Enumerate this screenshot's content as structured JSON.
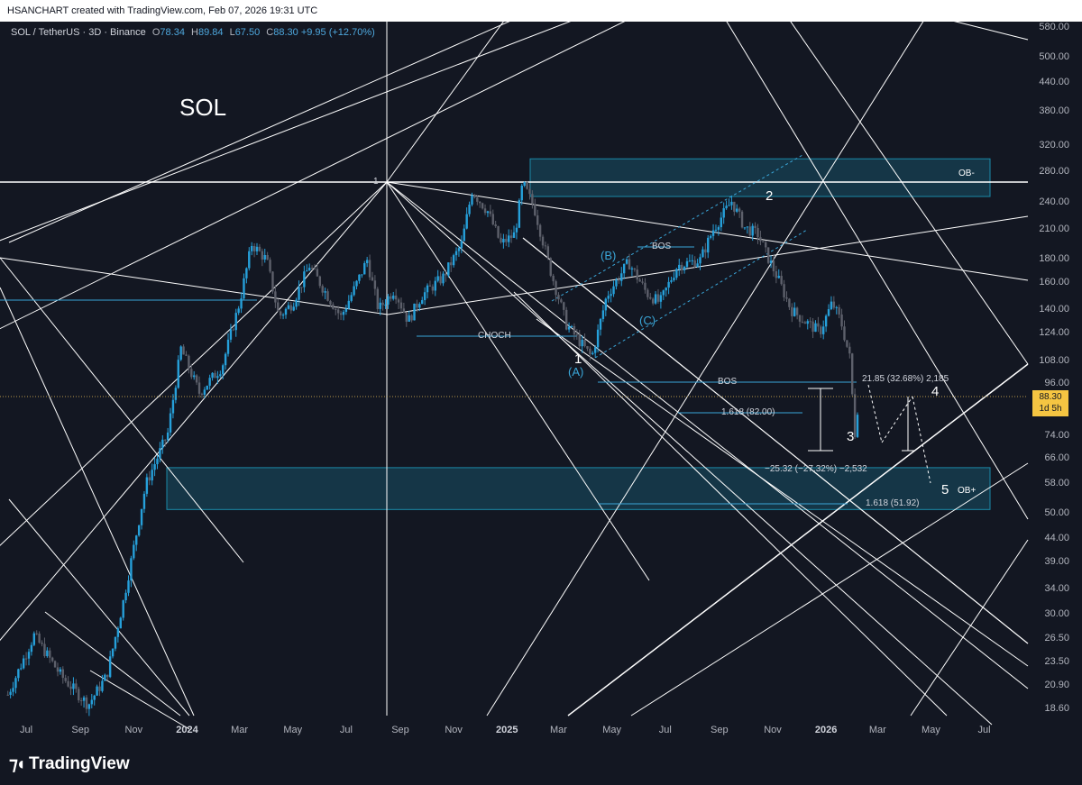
{
  "header": {
    "credit": "HSANCHART created with TradingView.com, Feb 07, 2026 19:31 UTC"
  },
  "legend": {
    "symbol": "SOL / TetherUS · 3D · Binance",
    "o_label": "O",
    "o": "78.34",
    "h_label": "H",
    "h": "89.84",
    "l_label": "L",
    "l": "67.50",
    "c_label": "C",
    "c": "88.30",
    "change": "+9.95 (+12.70%)"
  },
  "title": "SOL",
  "price_tag": {
    "price": "88.30",
    "countdown": "1d 5h"
  },
  "footer": {
    "brand": "TradingView"
  },
  "colors": {
    "background": "#131722",
    "up": "#26a0da",
    "down": "#5d606b",
    "zone": "#1b8aa8",
    "line": "#ffffff",
    "price_tag": "#f5c542"
  },
  "y_ticks": [
    "580.00",
    "500.00",
    "440.00",
    "380.00",
    "320.00",
    "280.00",
    "240.00",
    "210.00",
    "180.00",
    "160.00",
    "140.00",
    "124.00",
    "108.00",
    "96.00",
    "74.00",
    "66.00",
    "58.00",
    "50.00",
    "44.00",
    "39.00",
    "34.00",
    "30.00",
    "26.50",
    "23.50",
    "20.90",
    "18.60"
  ],
  "x_ticks": [
    "Jul",
    "Sep",
    "Nov",
    "2024",
    "Mar",
    "May",
    "Jul",
    "Sep",
    "Nov",
    "2025",
    "Mar",
    "May",
    "Jul",
    "Sep",
    "Nov",
    "2026",
    "Mar",
    "May",
    "Jul"
  ],
  "annotations": {
    "ob_minus": "OB-",
    "ob_plus": "OB+",
    "choch": "CHOCH",
    "bos_upper": "BOS",
    "bos_lower": "BOS",
    "fib_1": "1.618 (82.00)",
    "fib_2": "1.618 (51.92)",
    "measure_up": "21.85 (32.68%) 2,185",
    "measure_down": "−25.32 (−27.32%) −2,532",
    "pivot": "1"
  },
  "waves": {
    "w1": "1",
    "w2": "2",
    "w3": "3",
    "w4": "4",
    "w5": "5",
    "a": "(A)",
    "b": "(B)",
    "c": "(C)"
  },
  "chart_data": {
    "type": "candlestick",
    "title": "SOL",
    "symbol": "SOL / TetherUS",
    "interval": "3D",
    "exchange": "Binance",
    "y_scale": "log",
    "ylim": [
      18,
      600
    ],
    "x_range": [
      "2023-06",
      "2026-07"
    ],
    "last": {
      "open": 78.34,
      "high": 89.84,
      "low": 67.5,
      "close": 88.3,
      "change": 9.95,
      "change_pct": 12.7
    },
    "zones": [
      {
        "label": "OB-",
        "low": 248,
        "high": 300
      },
      {
        "label": "OB+",
        "low": 51,
        "high": 63
      }
    ],
    "levels": [
      {
        "label": "BOS",
        "value": 198
      },
      {
        "label": "CHOCH",
        "value": 120
      },
      {
        "label": "BOS",
        "value": 95
      },
      {
        "label": "1.618 (82.00)",
        "value": 82
      },
      {
        "label": "1.618 (51.92)",
        "value": 51.92
      }
    ],
    "path": [
      [
        "2023-06-10",
        20
      ],
      [
        "2023-07-10",
        27
      ],
      [
        "2023-08-10",
        22
      ],
      [
        "2023-09-10",
        19
      ],
      [
        "2023-10-01",
        22
      ],
      [
        "2023-10-20",
        32
      ],
      [
        "2023-11-15",
        58
      ],
      [
        "2023-12-10",
        75
      ],
      [
        "2023-12-25",
        115
      ],
      [
        "2024-01-15",
        92
      ],
      [
        "2024-02-10",
        105
      ],
      [
        "2024-03-01",
        145
      ],
      [
        "2024-03-15",
        195
      ],
      [
        "2024-04-01",
        180
      ],
      [
        "2024-04-15",
        135
      ],
      [
        "2024-05-01",
        145
      ],
      [
        "2024-05-20",
        175
      ],
      [
        "2024-06-10",
        150
      ],
      [
        "2024-06-25",
        135
      ],
      [
        "2024-07-10",
        155
      ],
      [
        "2024-07-25",
        180
      ],
      [
        "2024-08-07",
        140
      ],
      [
        "2024-08-25",
        155
      ],
      [
        "2024-09-10",
        132
      ],
      [
        "2024-09-25",
        150
      ],
      [
        "2024-10-20",
        165
      ],
      [
        "2024-11-10",
        195
      ],
      [
        "2024-11-22",
        255
      ],
      [
        "2024-12-10",
        230
      ],
      [
        "2024-12-25",
        195
      ],
      [
        "2025-01-10",
        205
      ],
      [
        "2025-01-19",
        265
      ],
      [
        "2025-02-01",
        235
      ],
      [
        "2025-02-20",
        170
      ],
      [
        "2025-03-10",
        130
      ],
      [
        "2025-04-08",
        110
      ],
      [
        "2025-04-25",
        150
      ],
      [
        "2025-05-20",
        178
      ],
      [
        "2025-06-10",
        152
      ],
      [
        "2025-06-25",
        145
      ],
      [
        "2025-07-15",
        175
      ],
      [
        "2025-08-10",
        180
      ],
      [
        "2025-08-25",
        210
      ],
      [
        "2025-09-15",
        242
      ],
      [
        "2025-09-30",
        212
      ],
      [
        "2025-10-15",
        205
      ],
      [
        "2025-10-25",
        185
      ],
      [
        "2025-11-08",
        162
      ],
      [
        "2025-11-22",
        140
      ],
      [
        "2025-12-08",
        132
      ],
      [
        "2025-12-25",
        125
      ],
      [
        "2026-01-08",
        145
      ],
      [
        "2026-01-18",
        132
      ],
      [
        "2026-01-28",
        110
      ],
      [
        "2026-02-03",
        75
      ],
      [
        "2026-02-07",
        88.3
      ]
    ]
  }
}
